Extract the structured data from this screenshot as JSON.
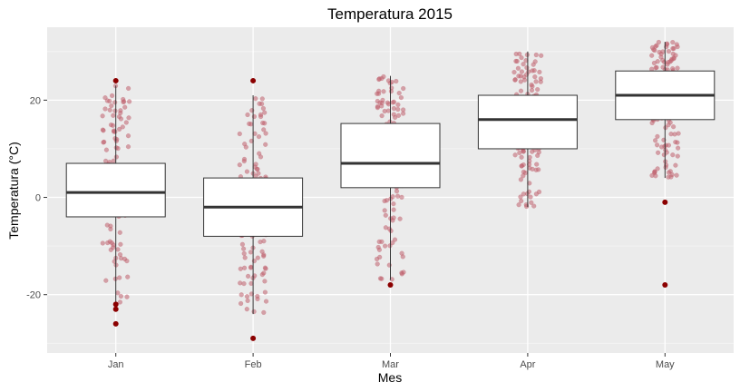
{
  "chart_data": {
    "type": "box",
    "title": "Temperatura 2015",
    "xlabel": "Mes",
    "ylabel": "Temperatura (°C)",
    "categories": [
      "Jan",
      "Feb",
      "Mar",
      "Apr",
      "May"
    ],
    "ylim": [
      -32,
      35
    ],
    "yticks": [
      -20,
      0,
      20
    ],
    "ytick_labels": [
      "-20",
      "0",
      "20"
    ],
    "grid": true,
    "boxes": [
      {
        "category": "Jan",
        "q1": -4,
        "median": 1,
        "q3": 7,
        "whisker_low": -22,
        "whisker_high": 23,
        "outliers": [
          24,
          -22,
          -23,
          -26
        ]
      },
      {
        "category": "Feb",
        "q1": -8,
        "median": -2,
        "q3": 4,
        "whisker_low": -24,
        "whisker_high": 21,
        "outliers": [
          24,
          -29
        ]
      },
      {
        "category": "Mar",
        "q1": 2,
        "median": 7,
        "q3": 15.2,
        "whisker_low": -17,
        "whisker_high": 25,
        "outliers": [
          -18
        ]
      },
      {
        "category": "Apr",
        "q1": 10,
        "median": 16,
        "q3": 21,
        "whisker_low": -2,
        "whisker_high": 30,
        "outliers": []
      },
      {
        "category": "May",
        "q1": 16,
        "median": 21,
        "q3": 26,
        "whisker_low": 4,
        "whisker_high": 32,
        "outliers": [
          -1,
          -18
        ]
      }
    ],
    "jitter_points": {
      "n_per_category": 155,
      "color": "#c0616e",
      "opacity": 0.55
    },
    "colors": {
      "panel_background": "#ebebeb",
      "gridline": "#ffffff",
      "box_fill": "#ffffff",
      "box_stroke": "#333333",
      "outlier": "#8b0000",
      "jitter": "#c0616e"
    }
  }
}
